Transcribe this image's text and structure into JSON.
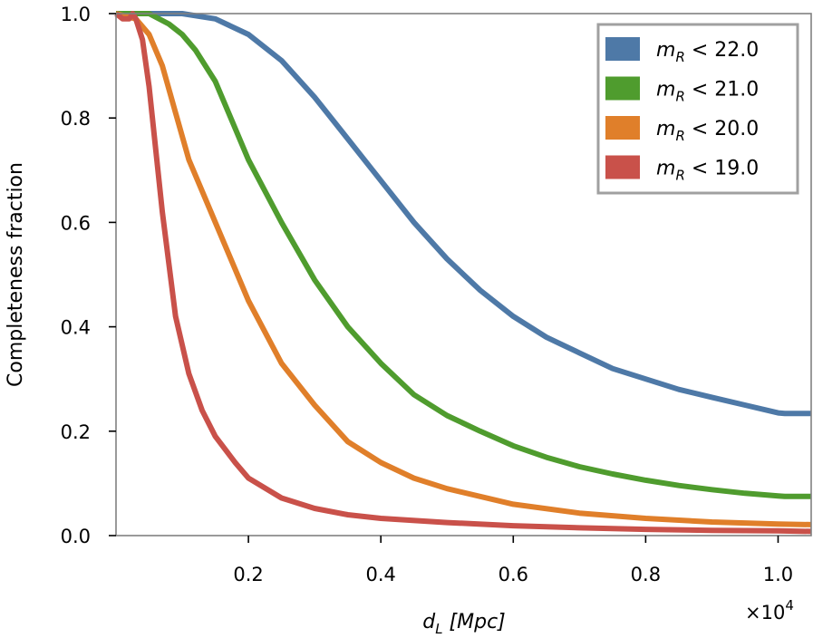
{
  "chart_data": {
    "type": "line",
    "title": "",
    "xlabel": "d_L [Mpc]",
    "xlabel_parts": {
      "var": "d",
      "sub": "L",
      "unit": " [Mpc]"
    },
    "ylabel": "Completeness fraction",
    "x_multiplier": "×10",
    "x_multiplier_exp": "4",
    "xlim": [
      0,
      1.05
    ],
    "ylim": [
      0,
      1.0
    ],
    "xticks": [
      0.2,
      0.4,
      0.6,
      0.8,
      1.0
    ],
    "xtick_labels": [
      "0.2",
      "0.4",
      "0.6",
      "0.8",
      "1.0"
    ],
    "yticks": [
      0.0,
      0.2,
      0.4,
      0.6,
      0.8,
      1.0
    ],
    "ytick_labels": [
      "0.0",
      "0.2",
      "0.4",
      "0.6",
      "0.8",
      "1.0"
    ],
    "grid": false,
    "legend_position": "top-right",
    "series": [
      {
        "name": "m_R < 22.0",
        "label_var": "m",
        "label_sub": "R",
        "label_rest": " < 22.0",
        "color": "#4e79a7",
        "x": [
          0,
          0.1,
          0.15,
          0.2,
          0.25,
          0.3,
          0.35,
          0.4,
          0.45,
          0.5,
          0.55,
          0.6,
          0.65,
          0.7,
          0.75,
          0.8,
          0.85,
          0.9,
          0.95,
          1.0,
          1.01,
          1.05
        ],
        "y": [
          1.0,
          1.0,
          0.99,
          0.96,
          0.91,
          0.84,
          0.76,
          0.68,
          0.6,
          0.53,
          0.47,
          0.42,
          0.38,
          0.35,
          0.32,
          0.3,
          0.28,
          0.265,
          0.25,
          0.235,
          0.234,
          0.234
        ]
      },
      {
        "name": "m_R < 21.0",
        "label_var": "m",
        "label_sub": "R",
        "label_rest": " < 21.0",
        "color": "#4f9c2e",
        "x": [
          0,
          0.05,
          0.08,
          0.1,
          0.12,
          0.15,
          0.2,
          0.25,
          0.3,
          0.35,
          0.4,
          0.45,
          0.5,
          0.55,
          0.6,
          0.65,
          0.7,
          0.75,
          0.8,
          0.85,
          0.9,
          0.95,
          1.0,
          1.01,
          1.05
        ],
        "y": [
          1.0,
          1.0,
          0.98,
          0.96,
          0.93,
          0.87,
          0.72,
          0.6,
          0.49,
          0.4,
          0.33,
          0.27,
          0.23,
          0.2,
          0.172,
          0.15,
          0.132,
          0.118,
          0.106,
          0.096,
          0.088,
          0.081,
          0.076,
          0.075,
          0.075
        ]
      },
      {
        "name": "m_R < 20.0",
        "label_var": "m",
        "label_sub": "R",
        "label_rest": " < 20.0",
        "color": "#e07f2a",
        "x": [
          0,
          0.03,
          0.05,
          0.07,
          0.09,
          0.11,
          0.13,
          0.15,
          0.18,
          0.2,
          0.25,
          0.3,
          0.35,
          0.4,
          0.45,
          0.5,
          0.6,
          0.7,
          0.8,
          0.9,
          1.0,
          1.05
        ],
        "y": [
          1.0,
          0.99,
          0.96,
          0.9,
          0.81,
          0.72,
          0.66,
          0.6,
          0.51,
          0.45,
          0.33,
          0.25,
          0.18,
          0.14,
          0.11,
          0.09,
          0.06,
          0.043,
          0.033,
          0.026,
          0.022,
          0.021
        ]
      },
      {
        "name": "m_R < 19.0",
        "label_var": "m",
        "label_sub": "R",
        "label_rest": " < 19.0",
        "color": "#c9514a",
        "x": [
          0,
          0.01,
          0.02,
          0.025,
          0.03,
          0.04,
          0.05,
          0.06,
          0.07,
          0.08,
          0.09,
          0.11,
          0.13,
          0.15,
          0.18,
          0.2,
          0.25,
          0.3,
          0.35,
          0.4,
          0.5,
          0.6,
          0.7,
          0.8,
          0.9,
          1.0,
          1.05
        ],
        "y": [
          1.0,
          0.99,
          0.99,
          1.0,
          0.99,
          0.95,
          0.86,
          0.74,
          0.62,
          0.52,
          0.42,
          0.31,
          0.24,
          0.19,
          0.14,
          0.11,
          0.072,
          0.052,
          0.04,
          0.033,
          0.025,
          0.019,
          0.015,
          0.012,
          0.01,
          0.009,
          0.008
        ]
      }
    ]
  }
}
